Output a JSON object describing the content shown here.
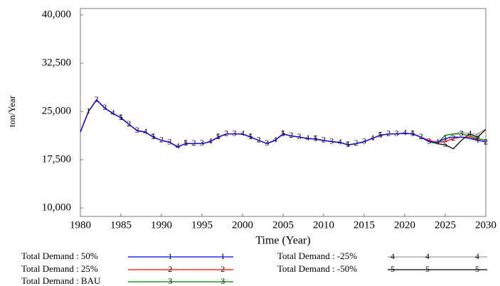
{
  "chart_data": {
    "type": "line",
    "y_label": "ton/Year",
    "x_label": "Time (Year)",
    "x": [
      1980,
      1981,
      1982,
      1983,
      1984,
      1985,
      1986,
      1987,
      1988,
      1989,
      1990,
      1991,
      1992,
      1993,
      1994,
      1995,
      1996,
      1997,
      1998,
      1999,
      2000,
      2001,
      2002,
      2003,
      2004,
      2005,
      2006,
      2007,
      2008,
      2009,
      2010,
      2011,
      2012,
      2013,
      2014,
      2015,
      2016,
      2017,
      2018,
      2019,
      2020,
      2021,
      2022,
      2023,
      2024,
      2025,
      2026,
      2027,
      2028,
      2029,
      2030
    ],
    "xlim": [
      1980,
      2030
    ],
    "xticks": [
      1980,
      1985,
      1990,
      1995,
      2000,
      2005,
      2010,
      2015,
      2020,
      2025,
      2030
    ],
    "ylim": [
      10000,
      40000
    ],
    "yticks": [
      {
        "value": 10000,
        "label": "10,000"
      },
      {
        "value": 17500,
        "label": "17,500"
      },
      {
        "value": 25000,
        "label": "25,000"
      },
      {
        "value": 32500,
        "label": "32,500"
      },
      {
        "value": 40000,
        "label": "40,000"
      }
    ],
    "series": [
      {
        "name": "Total Demand : 50%",
        "color": "#0000ff",
        "marker": "1",
        "values": [
          21800,
          25000,
          26800,
          25500,
          24700,
          24000,
          23000,
          22000,
          21800,
          21000,
          20500,
          20200,
          19500,
          20000,
          20000,
          20000,
          20300,
          21000,
          21500,
          21500,
          21500,
          21000,
          20500,
          20000,
          20500,
          21500,
          21200,
          21000,
          20800,
          20700,
          20500,
          20300,
          20200,
          19800,
          20000,
          20300,
          20800,
          21300,
          21500,
          21500,
          21600,
          21500,
          21000,
          20300,
          20200,
          20800,
          21000,
          21000,
          20800,
          20500,
          20300
        ]
      },
      {
        "name": "Total Demand : 25%",
        "color": "#ff0000",
        "marker": "2",
        "values": [
          21800,
          25000,
          26800,
          25500,
          24700,
          24000,
          23000,
          22000,
          21800,
          21000,
          20500,
          20200,
          19500,
          20000,
          20000,
          20000,
          20300,
          21000,
          21500,
          21500,
          21500,
          21000,
          20500,
          20000,
          20500,
          21500,
          21200,
          21000,
          20800,
          20700,
          20500,
          20300,
          20200,
          19800,
          20000,
          20300,
          20800,
          21300,
          21500,
          21500,
          21600,
          21500,
          21000,
          20500,
          20200,
          20300,
          20800,
          21000,
          21000,
          20600,
          20200
        ]
      },
      {
        "name": "Total Demand : BAU",
        "color": "#008000",
        "marker": "3",
        "values": [
          21800,
          25000,
          26800,
          25500,
          24700,
          24000,
          23000,
          22000,
          21800,
          21000,
          20500,
          20200,
          19500,
          20000,
          20000,
          20000,
          20300,
          21000,
          21500,
          21500,
          21500,
          21000,
          20500,
          20000,
          20500,
          21500,
          21200,
          21000,
          20800,
          20700,
          20500,
          20300,
          20200,
          19800,
          20000,
          20300,
          20800,
          21300,
          21500,
          21500,
          21600,
          21500,
          21000,
          20300,
          20000,
          21300,
          21500,
          21500,
          21200,
          20800,
          20500
        ]
      },
      {
        "name": "Total Demand : -25%",
        "color": "#a0a0a0",
        "marker": "4",
        "values": [
          21800,
          25000,
          26800,
          25500,
          24700,
          24000,
          23000,
          22000,
          21800,
          21000,
          20500,
          20200,
          19500,
          20000,
          20000,
          20000,
          20300,
          21000,
          21500,
          21500,
          21500,
          21000,
          20500,
          20000,
          20500,
          21500,
          21200,
          21000,
          20800,
          20700,
          20500,
          20300,
          20200,
          19800,
          20000,
          20300,
          20800,
          21300,
          21500,
          21500,
          21600,
          21500,
          21000,
          20300,
          20200,
          20500,
          21500,
          21800,
          21500,
          21500,
          22300
        ]
      },
      {
        "name": "Total Demand : -50%",
        "color": "#000000",
        "marker": "5",
        "values": [
          21800,
          25000,
          26800,
          25500,
          24700,
          24000,
          23000,
          22000,
          21800,
          21000,
          20500,
          20200,
          19500,
          20000,
          20000,
          20000,
          20300,
          21000,
          21500,
          21500,
          21500,
          21000,
          20500,
          20000,
          20500,
          21500,
          21200,
          21000,
          20800,
          20700,
          20500,
          20300,
          20200,
          19800,
          20000,
          20300,
          20800,
          21300,
          21500,
          21500,
          21600,
          21500,
          21000,
          20300,
          20000,
          19800,
          19200,
          20500,
          21500,
          21000,
          22200
        ]
      }
    ]
  }
}
